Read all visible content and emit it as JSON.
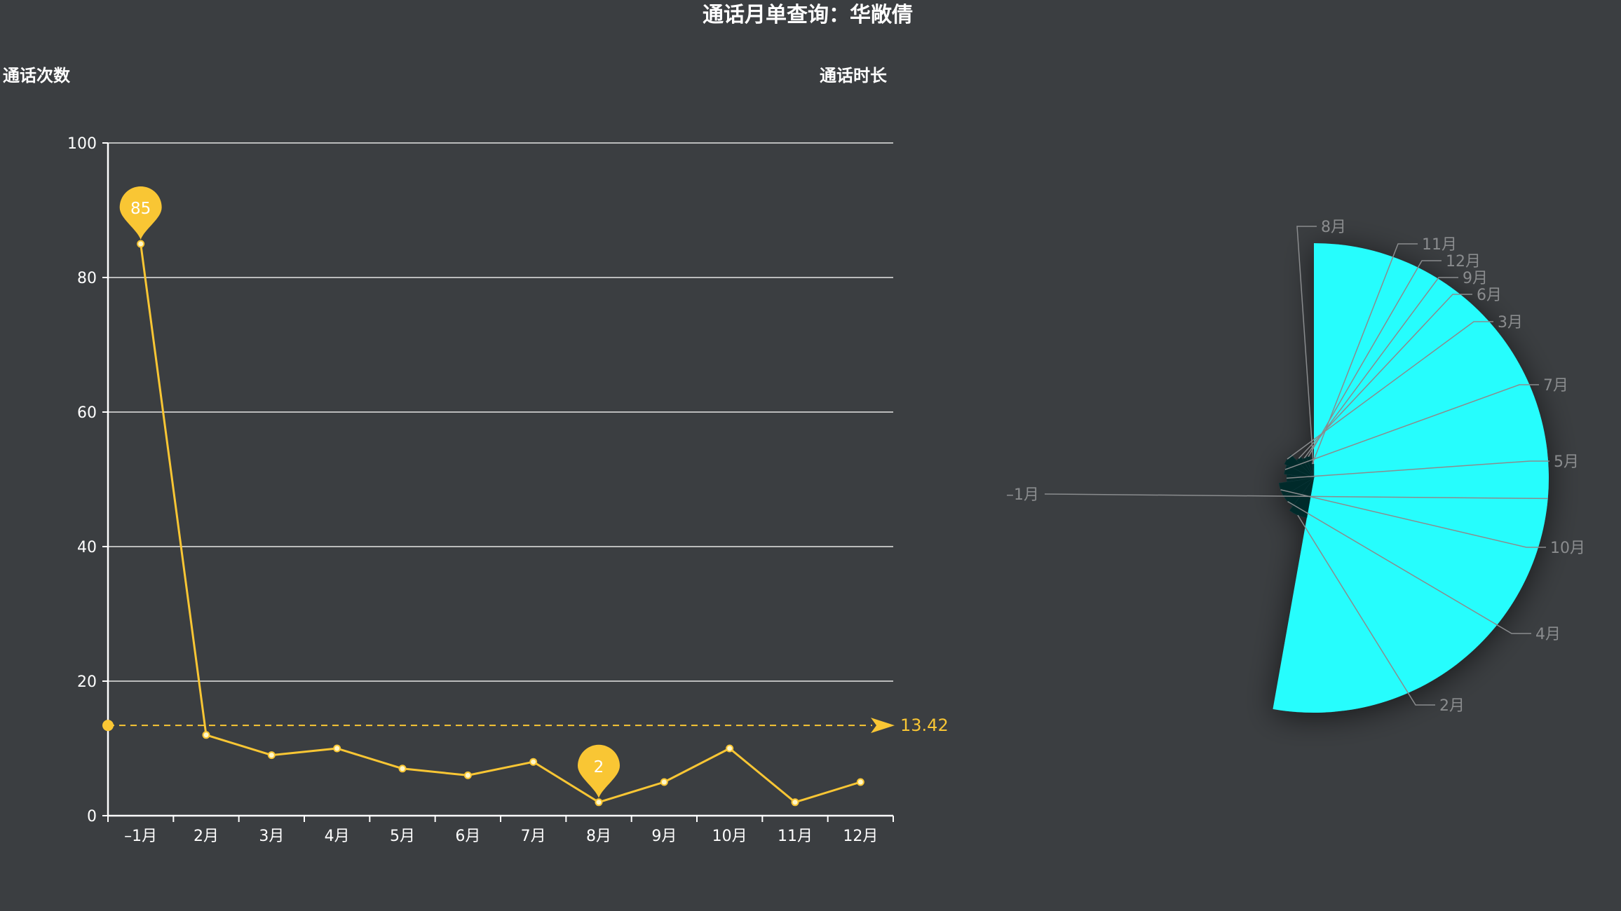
{
  "title": "通话月单查询：华敞倩",
  "colors": {
    "background": "#3b3e41",
    "line": "#f9c634",
    "pie_main": "#28fdfd",
    "pie_dark": "#062a2c",
    "text": "#ffffff",
    "pie_label": "#8a8c8e",
    "mark_line": "#f9c634"
  },
  "chart_data": [
    {
      "type": "line",
      "name_left": "通话次数",
      "name_right": "通话时长",
      "categories": [
        "–1月",
        "2月",
        "3月",
        "4月",
        "5月",
        "6月",
        "7月",
        "8月",
        "9月",
        "10月",
        "11月",
        "12月"
      ],
      "series": [
        {
          "values": [
            85,
            12,
            9,
            10,
            7,
            6,
            8,
            2,
            5,
            10,
            2,
            5
          ]
        }
      ],
      "ylim": [
        0,
        100
      ],
      "yticks": [
        0,
        20,
        40,
        60,
        80,
        100
      ],
      "grid": true,
      "mark_points": [
        {
          "label": "85",
          "category_index": 0,
          "value": 85
        },
        {
          "label": "2",
          "category_index": 7,
          "value": 2
        }
      ],
      "mark_line": {
        "value": 13.42,
        "label": "13.42"
      }
    },
    {
      "type": "pie",
      "rose": true,
      "slices": [
        {
          "label": "–1月",
          "value": 85
        },
        {
          "label": "2月",
          "value": 12
        },
        {
          "label": "4月",
          "value": 10
        },
        {
          "label": "10月",
          "value": 10
        },
        {
          "label": "5月",
          "value": 7
        },
        {
          "label": "7月",
          "value": 8
        },
        {
          "label": "3月",
          "value": 9
        },
        {
          "label": "6月",
          "value": 6
        },
        {
          "label": "9月",
          "value": 5
        },
        {
          "label": "12月",
          "value": 5
        },
        {
          "label": "11月",
          "value": 2
        },
        {
          "label": "8月",
          "value": 2
        }
      ]
    }
  ]
}
